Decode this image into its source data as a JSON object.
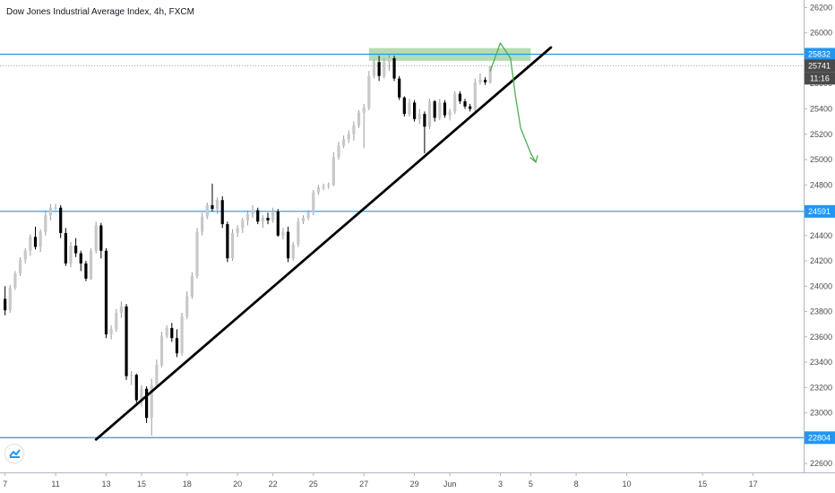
{
  "header": {
    "title": "Dow Jones Industrial Average Index, 4h, FXCM"
  },
  "colors": {
    "level_line": "#2196f3",
    "level_badge_bg": "#2196f3",
    "price_badge_bg": "#4a4a4a",
    "up_candle": "#c8c8c8",
    "down_candle": "#000000",
    "trendline": "#000000",
    "zone": "#a5d6a7",
    "arrow": "#4caf50"
  },
  "chart_data": {
    "type": "candlestick",
    "symbol": "Dow Jones Industrial Average Index",
    "timeframe": "4h",
    "source": "FXCM",
    "y_ticks": [
      "26200",
      "26000",
      "25800",
      "25600",
      "25400",
      "25200",
      "25000",
      "24800",
      "24600",
      "24400",
      "24200",
      "24000",
      "23800",
      "23600",
      "23400",
      "23200",
      "23000",
      "22800",
      "22600"
    ],
    "x_ticks": [
      {
        "label": "7",
        "i": 0
      },
      {
        "label": "11",
        "i": 10
      },
      {
        "label": "13",
        "i": 20
      },
      {
        "label": "15",
        "i": 27
      },
      {
        "label": "18",
        "i": 36
      },
      {
        "label": "20",
        "i": 46
      },
      {
        "label": "22",
        "i": 53
      },
      {
        "label": "25",
        "i": 61
      },
      {
        "label": "27",
        "i": 71
      },
      {
        "label": "29",
        "i": 81
      },
      {
        "label": "Jun",
        "i": 88
      },
      {
        "label": "3",
        "i": 98
      },
      {
        "label": "5",
        "i": 104
      },
      {
        "label": "8",
        "i": 113
      },
      {
        "label": "10",
        "i": 123
      },
      {
        "label": "15",
        "i": 138
      },
      {
        "label": "17",
        "i": 148
      }
    ],
    "x_range": [
      -1,
      158
    ],
    "y_range": [
      22530,
      26260
    ],
    "levels": [
      {
        "value": 25832,
        "label": "25832"
      },
      {
        "value": 24591,
        "label": "24591"
      },
      {
        "value": 22804,
        "label": "22804"
      }
    ],
    "last_price": {
      "value": 25741,
      "label": "25741",
      "countdown": "11:16"
    },
    "trendline": {
      "from": {
        "i": 18,
        "price": 22790
      },
      "to": {
        "i": 108,
        "price": 25885
      }
    },
    "resistance_zone": {
      "i_from": 72,
      "i_to": 104,
      "price_low": 25780,
      "price_high": 25880
    },
    "candles": [
      [
        23900,
        24000,
        23770,
        23810
      ],
      [
        23810,
        24010,
        23790,
        23990
      ],
      [
        23990,
        24120,
        23970,
        24100
      ],
      [
        24100,
        24230,
        24080,
        24210
      ],
      [
        24210,
        24300,
        24180,
        24280
      ],
      [
        24280,
        24410,
        24240,
        24390
      ],
      [
        24390,
        24470,
        24290,
        24310
      ],
      [
        24310,
        24450,
        24270,
        24430
      ],
      [
        24430,
        24600,
        24400,
        24560
      ],
      [
        24560,
        24650,
        24520,
        24620
      ],
      [
        24620,
        24650,
        24600,
        24620
      ],
      [
        24620,
        24640,
        24380,
        24420
      ],
      [
        24420,
        24460,
        24160,
        24180
      ],
      [
        24180,
        24350,
        24150,
        24320
      ],
      [
        24320,
        24380,
        24230,
        24260
      ],
      [
        24260,
        24280,
        24120,
        24180
      ],
      [
        24180,
        24200,
        24040,
        24060
      ],
      [
        24060,
        24300,
        24050,
        24280
      ],
      [
        24280,
        24510,
        24260,
        24480
      ],
      [
        24480,
        24500,
        24220,
        24280
      ],
      [
        24280,
        24300,
        23590,
        23620
      ],
      [
        23620,
        23690,
        23580,
        23660
      ],
      [
        23660,
        23820,
        23640,
        23790
      ],
      [
        23790,
        23880,
        23750,
        23840
      ],
      [
        23840,
        23860,
        23260,
        23290
      ],
      [
        23290,
        23330,
        23220,
        23300
      ],
      [
        23300,
        23310,
        23080,
        23100
      ],
      [
        23100,
        23220,
        23050,
        23190
      ],
      [
        23190,
        23210,
        22920,
        22960
      ],
      [
        22960,
        23270,
        22820,
        23220
      ],
      [
        23220,
        23420,
        23200,
        23380
      ],
      [
        23380,
        23640,
        23360,
        23610
      ],
      [
        23610,
        23690,
        23590,
        23670
      ],
      [
        23670,
        23710,
        23560,
        23590
      ],
      [
        23590,
        23660,
        23440,
        23470
      ],
      [
        23470,
        23790,
        23450,
        23760
      ],
      [
        23760,
        23960,
        23740,
        23920
      ],
      [
        23920,
        24110,
        23900,
        24080
      ],
      [
        24080,
        24460,
        24060,
        24430
      ],
      [
        24430,
        24580,
        24400,
        24550
      ],
      [
        24550,
        24660,
        24530,
        24640
      ],
      [
        24640,
        24810,
        24590,
        24610
      ],
      [
        24610,
        24700,
        24570,
        24680
      ],
      [
        24680,
        24710,
        24460,
        24490
      ],
      [
        24490,
        24510,
        24190,
        24220
      ],
      [
        24220,
        24450,
        24200,
        24420
      ],
      [
        24420,
        24480,
        24390,
        24460
      ],
      [
        24460,
        24540,
        24420,
        24520
      ],
      [
        24520,
        24600,
        24480,
        24570
      ],
      [
        24570,
        24640,
        24540,
        24600
      ],
      [
        24600,
        24620,
        24490,
        24510
      ],
      [
        24510,
        24560,
        24460,
        24540
      ],
      [
        24540,
        24580,
        24490,
        24520
      ],
      [
        24520,
        24620,
        24500,
        24590
      ],
      [
        24590,
        24610,
        24390,
        24400
      ],
      [
        24400,
        24460,
        24370,
        24430
      ],
      [
        24430,
        24470,
        24190,
        24220
      ],
      [
        24220,
        24350,
        24200,
        24330
      ],
      [
        24330,
        24540,
        24310,
        24510
      ],
      [
        24510,
        24560,
        24490,
        24540
      ],
      [
        24540,
        24600,
        24520,
        24580
      ],
      [
        24580,
        24760,
        24560,
        24740
      ],
      [
        24740,
        24800,
        24720,
        24780
      ],
      [
        24780,
        24810,
        24760,
        24790
      ],
      [
        24790,
        24820,
        24770,
        24800
      ],
      [
        24800,
        25060,
        24790,
        25020
      ],
      [
        25020,
        25140,
        25000,
        25110
      ],
      [
        25110,
        25190,
        25090,
        25160
      ],
      [
        25160,
        25230,
        25130,
        25200
      ],
      [
        25200,
        25300,
        25150,
        25270
      ],
      [
        25270,
        25390,
        25250,
        25370
      ],
      [
        25370,
        25440,
        25090,
        25410
      ],
      [
        25410,
        25700,
        25390,
        25660
      ],
      [
        25660,
        25790,
        25640,
        25770
      ],
      [
        25770,
        25820,
        25620,
        25660
      ],
      [
        25660,
        25800,
        25640,
        25770
      ],
      [
        25770,
        25830,
        25700,
        25800
      ],
      [
        25800,
        25820,
        25620,
        25640
      ],
      [
        25640,
        25660,
        25470,
        25490
      ],
      [
        25490,
        25500,
        25340,
        25360
      ],
      [
        25360,
        25480,
        25340,
        25450
      ],
      [
        25450,
        25470,
        25300,
        25320
      ],
      [
        25320,
        25400,
        25280,
        25360
      ],
      [
        25360,
        25380,
        25050,
        25260
      ],
      [
        25260,
        25480,
        25240,
        25460
      ],
      [
        25460,
        25470,
        25300,
        25330
      ],
      [
        25330,
        25480,
        25310,
        25450
      ],
      [
        25450,
        25470,
        25330,
        25350
      ],
      [
        25350,
        25400,
        25310,
        25380
      ],
      [
        25380,
        25540,
        25360,
        25520
      ],
      [
        25520,
        25540,
        25440,
        25460
      ],
      [
        25460,
        25480,
        25400,
        25420
      ],
      [
        25420,
        25440,
        25380,
        25400
      ],
      [
        25400,
        25640,
        25380,
        25610
      ],
      [
        25610,
        25680,
        25590,
        25630
      ],
      [
        25630,
        25650,
        25590,
        25610
      ],
      [
        25610,
        25740,
        25600,
        25740
      ]
    ]
  }
}
